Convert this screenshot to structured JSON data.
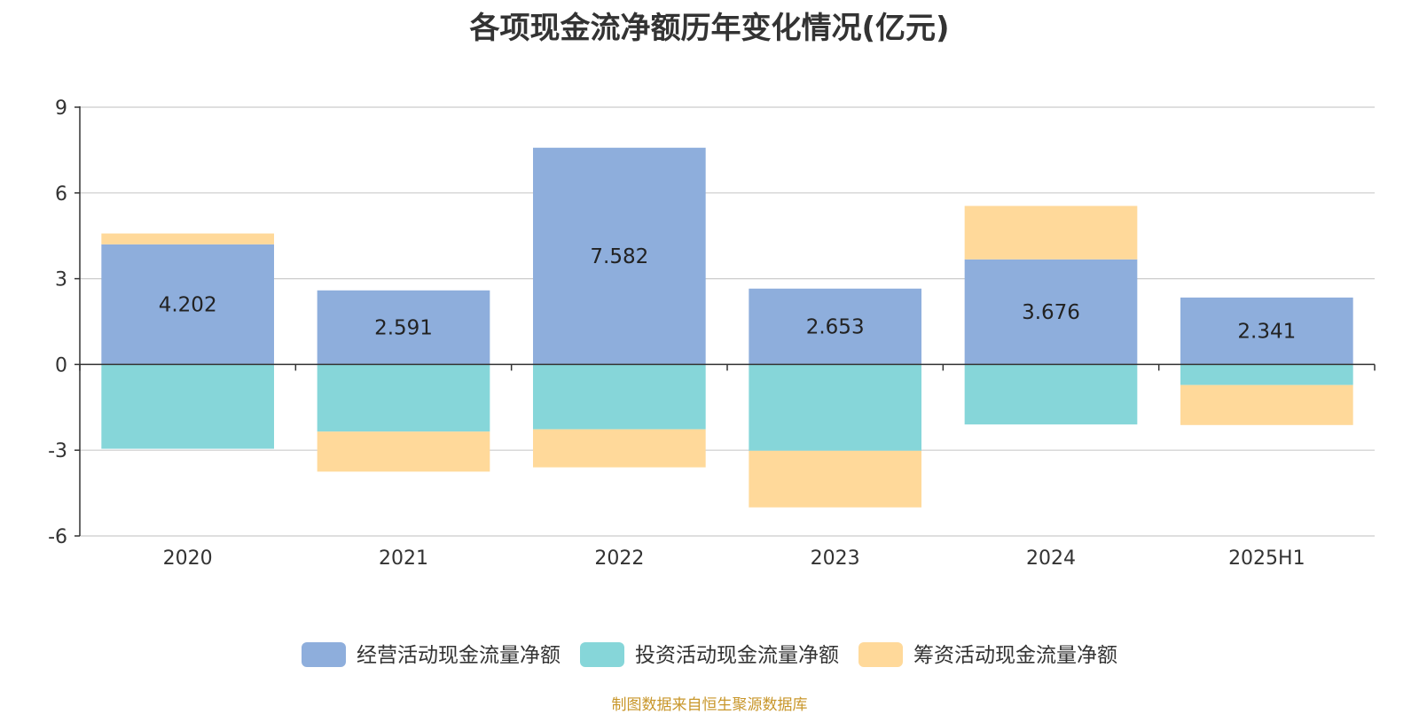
{
  "chart_data": {
    "type": "bar",
    "stacked": true,
    "title": "各项现金流净额历年变化情况(亿元)",
    "categories": [
      "2020",
      "2021",
      "2022",
      "2023",
      "2024",
      "2025H1"
    ],
    "ylim": [
      -6,
      9
    ],
    "yticks": [
      -6,
      -3,
      0,
      3,
      6,
      9
    ],
    "grid": true,
    "legend_position": "bottom",
    "series": [
      {
        "name": "经营活动现金流量净额",
        "color": "#8eaedc",
        "values": [
          4.202,
          2.591,
          7.582,
          2.653,
          3.676,
          2.341
        ],
        "labels": [
          "4.202",
          "2.591",
          "7.582",
          "2.653",
          "3.676",
          "2.341"
        ]
      },
      {
        "name": "投资活动现金流量净额",
        "color": "#86d6d9",
        "values": [
          -2.95,
          -2.35,
          -2.27,
          -3.02,
          -2.1,
          -0.72
        ]
      },
      {
        "name": "筹资活动现金流量净额",
        "color": "#ffd99a",
        "values": [
          0.38,
          -1.4,
          -1.33,
          -1.98,
          1.87,
          -1.4
        ]
      }
    ]
  },
  "source_note": "制图数据来自恒生聚源数据库"
}
